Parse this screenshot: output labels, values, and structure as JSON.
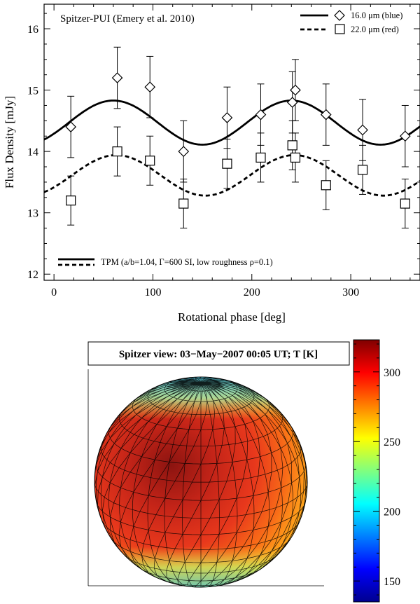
{
  "chart_data": [
    {
      "type": "scatter",
      "title": "",
      "annotation": "Spitzer-PUI (Emery et al. 2010)",
      "xlabel": "Rotational phase [deg]",
      "ylabel": "Flux Density [mJy]",
      "xlim": [
        -10,
        370
      ],
      "ylim": [
        11.9,
        16.4
      ],
      "xticks": [
        0,
        100,
        200,
        300
      ],
      "yticks": [
        12,
        13,
        14,
        15,
        16
      ],
      "legend_position": "top-right",
      "series": [
        {
          "name": "16.0 μm (blue)",
          "legend_label": "16.0 μm (blue)",
          "marker": "diamond",
          "points": [
            {
              "x": 17,
              "y": 14.4,
              "err": 0.5
            },
            {
              "x": 64,
              "y": 15.2,
              "err": 0.5
            },
            {
              "x": 97,
              "y": 15.05,
              "err": 0.5
            },
            {
              "x": 131,
              "y": 14.0,
              "err": 0.5
            },
            {
              "x": 175,
              "y": 14.55,
              "err": 0.5
            },
            {
              "x": 209,
              "y": 14.6,
              "err": 0.5
            },
            {
              "x": 241,
              "y": 14.8,
              "err": 0.5
            },
            {
              "x": 244,
              "y": 15.0,
              "err": 0.5
            },
            {
              "x": 275,
              "y": 14.6,
              "err": 0.5
            },
            {
              "x": 312,
              "y": 14.35,
              "err": 0.5
            },
            {
              "x": 355,
              "y": 14.25,
              "err": 0.5
            }
          ]
        },
        {
          "name": "22.0 μm (red)",
          "legend_label": "22.0 μm (red)",
          "marker": "square",
          "points": [
            {
              "x": 17,
              "y": 13.2,
              "err": 0.4
            },
            {
              "x": 64,
              "y": 14.0,
              "err": 0.4
            },
            {
              "x": 97,
              "y": 13.85,
              "err": 0.4
            },
            {
              "x": 131,
              "y": 13.15,
              "err": 0.4
            },
            {
              "x": 175,
              "y": 13.8,
              "err": 0.4
            },
            {
              "x": 209,
              "y": 13.9,
              "err": 0.4
            },
            {
              "x": 241,
              "y": 14.1,
              "err": 0.4
            },
            {
              "x": 244,
              "y": 13.9,
              "err": 0.4
            },
            {
              "x": 275,
              "y": 13.45,
              "err": 0.4
            },
            {
              "x": 312,
              "y": 13.7,
              "err": 0.4
            },
            {
              "x": 355,
              "y": 13.15,
              "err": 0.4
            }
          ]
        }
      ],
      "models": [
        {
          "name": "16.0 μm TPM",
          "style": "solid",
          "mean": 14.47,
          "amplitude": 0.36,
          "peak_phase": 60
        },
        {
          "name": "22.0 μm TPM",
          "style": "dashed",
          "mean": 13.61,
          "amplitude": 0.33,
          "peak_phase": 63
        }
      ],
      "model_legend_label": "TPM (a/b=1.04, Γ=600 SI, low roughness ρ=0.1)"
    },
    {
      "type": "heatmap",
      "title": "Spitzer view: 03−May−2007 00:05 UT; T [K]",
      "colorbar_label": "T [K]",
      "colorbar_range": [
        135,
        323
      ],
      "colorbar_ticks": [
        150,
        200,
        250,
        300
      ]
    }
  ]
}
